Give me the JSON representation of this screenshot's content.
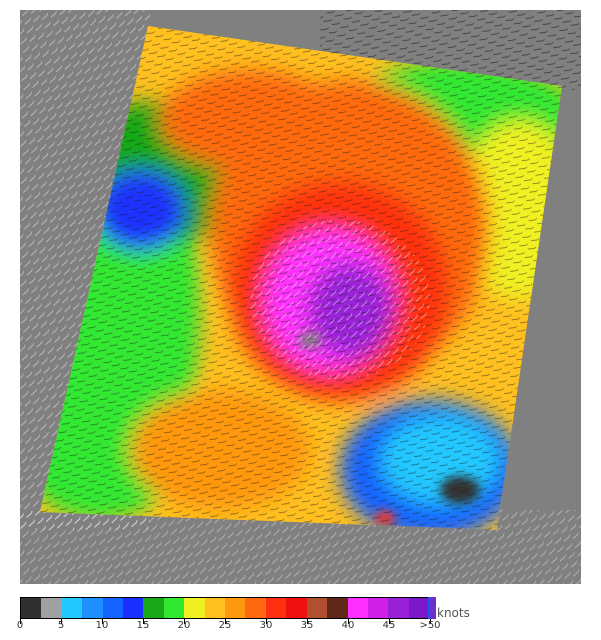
{
  "legend": {
    "units": "knots",
    "ticks": [
      "0",
      "5",
      "10",
      "15",
      "20",
      "25",
      "30",
      "35",
      "40",
      "45",
      ">50"
    ],
    "bins": [
      {
        "range": "0-2.5",
        "color": "#303030"
      },
      {
        "range": "2.5-5",
        "color": "#a0a0a0"
      },
      {
        "range": "5-7.5",
        "color": "#20c8ff"
      },
      {
        "range": "7.5-10",
        "color": "#1e90ff"
      },
      {
        "range": "10-12.5",
        "color": "#1464ff"
      },
      {
        "range": "12.5-15",
        "color": "#1a30ff"
      },
      {
        "range": "15-17.5",
        "color": "#18a818"
      },
      {
        "range": "17.5-20",
        "color": "#30e830"
      },
      {
        "range": "20-22.5",
        "color": "#f0f020"
      },
      {
        "range": "22.5-25",
        "color": "#ffc020"
      },
      {
        "range": "25-27.5",
        "color": "#ff9810"
      },
      {
        "range": "27.5-30",
        "color": "#ff6a10"
      },
      {
        "range": "30-32.5",
        "color": "#ff3010"
      },
      {
        "range": "32.5-35",
        "color": "#f01010"
      },
      {
        "range": "35-37.5",
        "color": "#b05030"
      },
      {
        "range": "37.5-40",
        "color": "#602818"
      },
      {
        "range": "40-42.5",
        "color": "#ff30ff"
      },
      {
        "range": "42.5-45",
        "color": "#d020e8"
      },
      {
        "range": "45-47.5",
        "color": "#9a20d8"
      },
      {
        "range": "47.5-50",
        "color": "#7a18c8"
      }
    ]
  },
  "map": {
    "background_color": "#808080",
    "features": [
      {
        "kind": "storm-core",
        "speed_band": "40-50"
      },
      {
        "kind": "eyewall",
        "speed_band": "30-35"
      },
      {
        "kind": "low-wind-region",
        "speed_band": "5-15"
      },
      {
        "kind": "moderate-wind-region",
        "speed_band": "15-20"
      }
    ]
  }
}
